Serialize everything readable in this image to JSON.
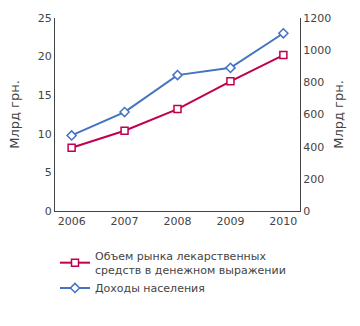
{
  "chart_data": {
    "type": "line",
    "categories": [
      "2006",
      "2007",
      "2008",
      "2009",
      "2010"
    ],
    "series": [
      {
        "name": "Объем рынка лекарственных\nсредств в денежном выражении",
        "color": "#c0004e",
        "marker": "square",
        "values": [
          8.2,
          10.4,
          13.2,
          16.8,
          20.2
        ]
      },
      {
        "name": "Доходы населения",
        "color": "#4472c4",
        "marker": "diamond",
        "axis": "y2",
        "values": [
          470,
          615,
          845,
          890,
          1105
        ]
      }
    ],
    "ylabel": "Млрд грн.",
    "y2label": "Млрд грн.",
    "ylim": [
      0,
      25
    ],
    "yticks": [
      0,
      5,
      10,
      15,
      20,
      25
    ],
    "y2lim": [
      0,
      1200
    ],
    "y2ticks": [
      0,
      200,
      400,
      600,
      800,
      1000,
      1200
    ],
    "grid": false,
    "legend": "bottom"
  }
}
